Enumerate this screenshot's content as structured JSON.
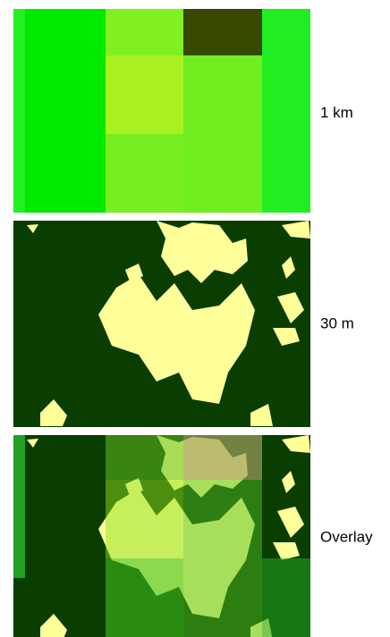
{
  "panels": [
    {
      "label": "1 km"
    },
    {
      "label": "30 m"
    },
    {
      "label": "Overlay"
    }
  ]
}
